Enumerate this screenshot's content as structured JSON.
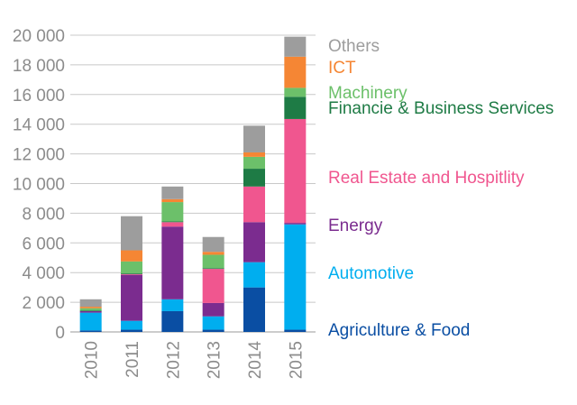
{
  "chart_data": {
    "type": "bar",
    "stacked": true,
    "title": "",
    "xlabel": "",
    "ylabel": "",
    "ylim": [
      0,
      20000
    ],
    "yticks": [
      0,
      2000,
      4000,
      6000,
      8000,
      10000,
      12000,
      14000,
      16000,
      18000,
      20000
    ],
    "ytick_labels": [
      "0",
      "2 000",
      "4 000",
      "6 000",
      "8 000",
      "10 000",
      "12 000",
      "14 000",
      "16 000",
      "18 000",
      "20 000"
    ],
    "categories": [
      "2010",
      "2011",
      "2012",
      "2013",
      "2014",
      "2015"
    ],
    "grid": true,
    "legend_position": "right",
    "series": [
      {
        "name": "Agriculture & Food",
        "color": "#0a4ea3",
        "values": [
          100,
          150,
          1400,
          150,
          3000,
          150
        ]
      },
      {
        "name": "Automotive",
        "color": "#00aeef",
        "values": [
          1200,
          600,
          800,
          900,
          1700,
          7100
        ]
      },
      {
        "name": "Energy",
        "color": "#7b2c8f",
        "values": [
          100,
          3100,
          4900,
          900,
          2700,
          100
        ]
      },
      {
        "name": "Real Estate and Hospitlity",
        "color": "#f0568f",
        "values": [
          0,
          50,
          300,
          2300,
          2400,
          7000
        ]
      },
      {
        "name": "Financie & Business Services",
        "color": "#1e7b45",
        "values": [
          50,
          50,
          50,
          50,
          1200,
          1500
        ]
      },
      {
        "name": "Machinery",
        "color": "#6cc06a",
        "values": [
          150,
          800,
          1300,
          900,
          800,
          600
        ]
      },
      {
        "name": "ICT",
        "color": "#f58634",
        "values": [
          100,
          750,
          200,
          200,
          300,
          2100
        ]
      },
      {
        "name": "Others",
        "color": "#9d9d9d",
        "values": [
          500,
          2300,
          850,
          1000,
          1800,
          1350
        ]
      }
    ]
  }
}
